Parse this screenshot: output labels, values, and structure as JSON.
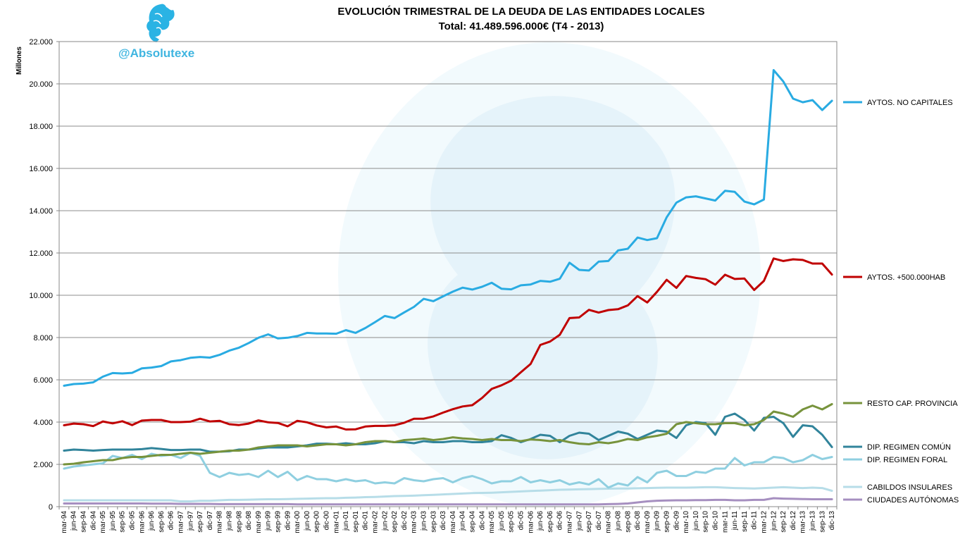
{
  "brand": {
    "handle": "@Absolutexe",
    "logo_icon": "griffin-logo-icon"
  },
  "chart_data": {
    "type": "line",
    "title": "EVOLUCIÓN TRIMESTRAL DE LA DEUDA DE LAS ENTIDADES LOCALES",
    "subtitle": "Total: 41.489.596.000€ (T4 - 2013)",
    "ylabel": "Millones",
    "xlabel": "",
    "ylim": [
      0,
      22000
    ],
    "yticks": [
      0,
      2000,
      4000,
      6000,
      8000,
      10000,
      12000,
      14000,
      16000,
      18000,
      20000,
      22000
    ],
    "ytick_labels": [
      "0",
      "2.000",
      "4.000",
      "6.000",
      "8.000",
      "10.000",
      "12.000",
      "14.000",
      "16.000",
      "18.000",
      "20.000",
      "22.000"
    ],
    "grid": true,
    "legend": "right, at line ends",
    "x": [
      "mar-94",
      "jun-94",
      "sep-94",
      "dic-94",
      "mar-95",
      "jun-95",
      "sep-95",
      "dic-95",
      "mar-96",
      "jun-96",
      "sep-96",
      "dic-96",
      "mar-97",
      "jun-97",
      "sep-97",
      "dic-97",
      "mar-98",
      "jun-98",
      "sep-98",
      "dic-98",
      "mar-99",
      "jun-99",
      "sep-99",
      "dic-99",
      "mar-00",
      "jun-00",
      "sep-00",
      "dic-00",
      "mar-01",
      "jun-01",
      "sep-01",
      "dic-01",
      "mar-02",
      "jun-02",
      "sep-02",
      "dic-02",
      "mar-03",
      "jun-03",
      "sep-03",
      "dic-03",
      "mar-04",
      "jun-04",
      "sep-04",
      "dic-04",
      "mar-05",
      "jun-05",
      "sep-05",
      "dic-05",
      "mar-06",
      "jun-06",
      "sep-06",
      "dic-06",
      "mar-07",
      "jun-07",
      "sep-07",
      "dic-07",
      "mar-08",
      "jun-08",
      "sep-08",
      "dic-08",
      "mar-09",
      "jun-09",
      "sep-09",
      "dic-09",
      "mar-10",
      "jun-10",
      "sep-10",
      "dic-10",
      "mar-11",
      "jun-11",
      "sep-11",
      "dic-11",
      "mar-12",
      "jun-12",
      "sep-12",
      "dic-12",
      "mar-13",
      "jun-13",
      "sep-13",
      "dic-13"
    ],
    "series": [
      {
        "name": "AYTOS. NO CAPITALES",
        "color": "#29abe2",
        "values": [
          5720,
          5800,
          5820,
          5880,
          6150,
          6320,
          6300,
          6330,
          6540,
          6580,
          6650,
          6870,
          6930,
          7040,
          7080,
          7050,
          7180,
          7380,
          7520,
          7740,
          7990,
          8150,
          7960,
          7990,
          8070,
          8220,
          8190,
          8190,
          8180,
          8350,
          8220,
          8450,
          8730,
          9020,
          8920,
          9190,
          9450,
          9830,
          9720,
          9950,
          10170,
          10360,
          10270,
          10400,
          10590,
          10310,
          10280,
          10470,
          10510,
          10680,
          10640,
          10780,
          11540,
          11200,
          11170,
          11590,
          11620,
          12120,
          12200,
          12730,
          12610,
          12700,
          13690,
          14380,
          14630,
          14680,
          14580,
          14480,
          14940,
          14890,
          14430,
          14300,
          14530,
          20650,
          20110,
          19300,
          19130,
          19230,
          18760,
          19200
        ]
      },
      {
        "name": "AYTOS. +500.000HAB",
        "color": "#c00000",
        "values": [
          3850,
          3930,
          3900,
          3810,
          4030,
          3940,
          4040,
          3860,
          4070,
          4100,
          4100,
          4000,
          4000,
          4020,
          4160,
          4030,
          4060,
          3900,
          3860,
          3930,
          4080,
          3990,
          3960,
          3800,
          4060,
          3990,
          3840,
          3750,
          3790,
          3650,
          3660,
          3790,
          3820,
          3820,
          3850,
          3970,
          4160,
          4160,
          4270,
          4450,
          4610,
          4740,
          4800,
          5140,
          5570,
          5740,
          5960,
          6360,
          6750,
          7650,
          7810,
          8130,
          8920,
          8950,
          9310,
          9180,
          9300,
          9340,
          9520,
          9960,
          9660,
          10160,
          10730,
          10350,
          10910,
          10820,
          10760,
          10500,
          10970,
          10770,
          10790,
          10250,
          10680,
          11740,
          11620,
          11700,
          11670,
          11500,
          11500,
          10980
        ]
      },
      {
        "name": "RESTO CAP. PROVINCIA",
        "color": "#77933c",
        "values": [
          2000,
          2030,
          2100,
          2150,
          2200,
          2200,
          2300,
          2350,
          2350,
          2400,
          2450,
          2450,
          2500,
          2550,
          2500,
          2550,
          2600,
          2650,
          2650,
          2700,
          2800,
          2850,
          2900,
          2900,
          2900,
          2850,
          2900,
          2950,
          2950,
          2900,
          2950,
          3050,
          3100,
          3100,
          3050,
          3150,
          3180,
          3220,
          3150,
          3200,
          3280,
          3230,
          3200,
          3150,
          3200,
          3150,
          3150,
          3100,
          3180,
          3150,
          3100,
          3150,
          3050,
          2980,
          2950,
          3050,
          3000,
          3080,
          3200,
          3150,
          3280,
          3350,
          3450,
          3900,
          4000,
          3950,
          3900,
          3900,
          3950,
          3950,
          3850,
          3900,
          4100,
          4500,
          4400,
          4250,
          4600,
          4780,
          4600,
          4850
        ]
      },
      {
        "name": "DIP. REGIMEN  COMÚN",
        "color": "#31849b",
        "values": [
          2650,
          2700,
          2680,
          2650,
          2680,
          2700,
          2700,
          2700,
          2720,
          2770,
          2730,
          2680,
          2680,
          2700,
          2700,
          2600,
          2600,
          2620,
          2700,
          2700,
          2750,
          2800,
          2800,
          2800,
          2850,
          2900,
          2980,
          2980,
          2950,
          3000,
          2950,
          2950,
          3000,
          3100,
          3050,
          3050,
          3000,
          3100,
          3050,
          3050,
          3100,
          3100,
          3050,
          3050,
          3100,
          3380,
          3250,
          3050,
          3200,
          3400,
          3350,
          3050,
          3350,
          3500,
          3450,
          3150,
          3350,
          3550,
          3450,
          3200,
          3400,
          3600,
          3550,
          3250,
          3850,
          4000,
          3950,
          3400,
          4250,
          4400,
          4100,
          3600,
          4200,
          4250,
          3950,
          3300,
          3850,
          3800,
          3400,
          2820
        ]
      },
      {
        "name": "DIP. REGIMEN  FORAL",
        "color": "#8fcfe0",
        "values": [
          1800,
          1900,
          1950,
          2000,
          2050,
          2400,
          2300,
          2450,
          2250,
          2500,
          2400,
          2450,
          2300,
          2550,
          2400,
          1600,
          1400,
          1600,
          1500,
          1550,
          1400,
          1700,
          1400,
          1650,
          1250,
          1450,
          1300,
          1300,
          1200,
          1300,
          1200,
          1250,
          1100,
          1150,
          1100,
          1350,
          1250,
          1200,
          1300,
          1350,
          1150,
          1350,
          1450,
          1300,
          1100,
          1200,
          1200,
          1400,
          1150,
          1250,
          1150,
          1250,
          1050,
          1150,
          1050,
          1300,
          900,
          1100,
          1000,
          1400,
          1150,
          1600,
          1700,
          1450,
          1450,
          1650,
          1600,
          1800,
          1800,
          2300,
          1950,
          2100,
          2100,
          2350,
          2300,
          2100,
          2200,
          2450,
          2250,
          2350
        ]
      },
      {
        "name": "CABILDOS INSULARES",
        "color": "#b7dde8",
        "values": [
          300,
          300,
          300,
          300,
          300,
          300,
          300,
          300,
          300,
          300,
          300,
          300,
          250,
          250,
          280,
          280,
          300,
          320,
          320,
          330,
          340,
          350,
          350,
          360,
          370,
          380,
          390,
          400,
          400,
          420,
          430,
          450,
          460,
          480,
          500,
          510,
          520,
          540,
          560,
          580,
          600,
          620,
          640,
          650,
          660,
          680,
          700,
          720,
          740,
          760,
          780,
          800,
          810,
          820,
          830,
          840,
          850,
          860,
          860,
          870,
          880,
          890,
          900,
          900,
          900,
          910,
          920,
          920,
          900,
          880,
          870,
          860,
          880,
          900,
          920,
          900,
          880,
          900,
          880,
          750
        ]
      },
      {
        "name": "CIUDADES AUTÓNOMAS",
        "color": "#a68fc0",
        "values": [
          150,
          150,
          150,
          150,
          150,
          150,
          150,
          150,
          150,
          140,
          140,
          140,
          130,
          130,
          130,
          130,
          120,
          120,
          120,
          120,
          120,
          120,
          120,
          120,
          110,
          110,
          110,
          110,
          110,
          110,
          110,
          110,
          110,
          110,
          110,
          110,
          110,
          110,
          110,
          110,
          110,
          110,
          110,
          110,
          110,
          110,
          110,
          110,
          110,
          110,
          110,
          110,
          110,
          110,
          110,
          110,
          120,
          130,
          150,
          200,
          250,
          280,
          290,
          300,
          300,
          310,
          310,
          320,
          320,
          300,
          300,
          320,
          320,
          400,
          380,
          370,
          360,
          350,
          350,
          350
        ]
      }
    ]
  }
}
